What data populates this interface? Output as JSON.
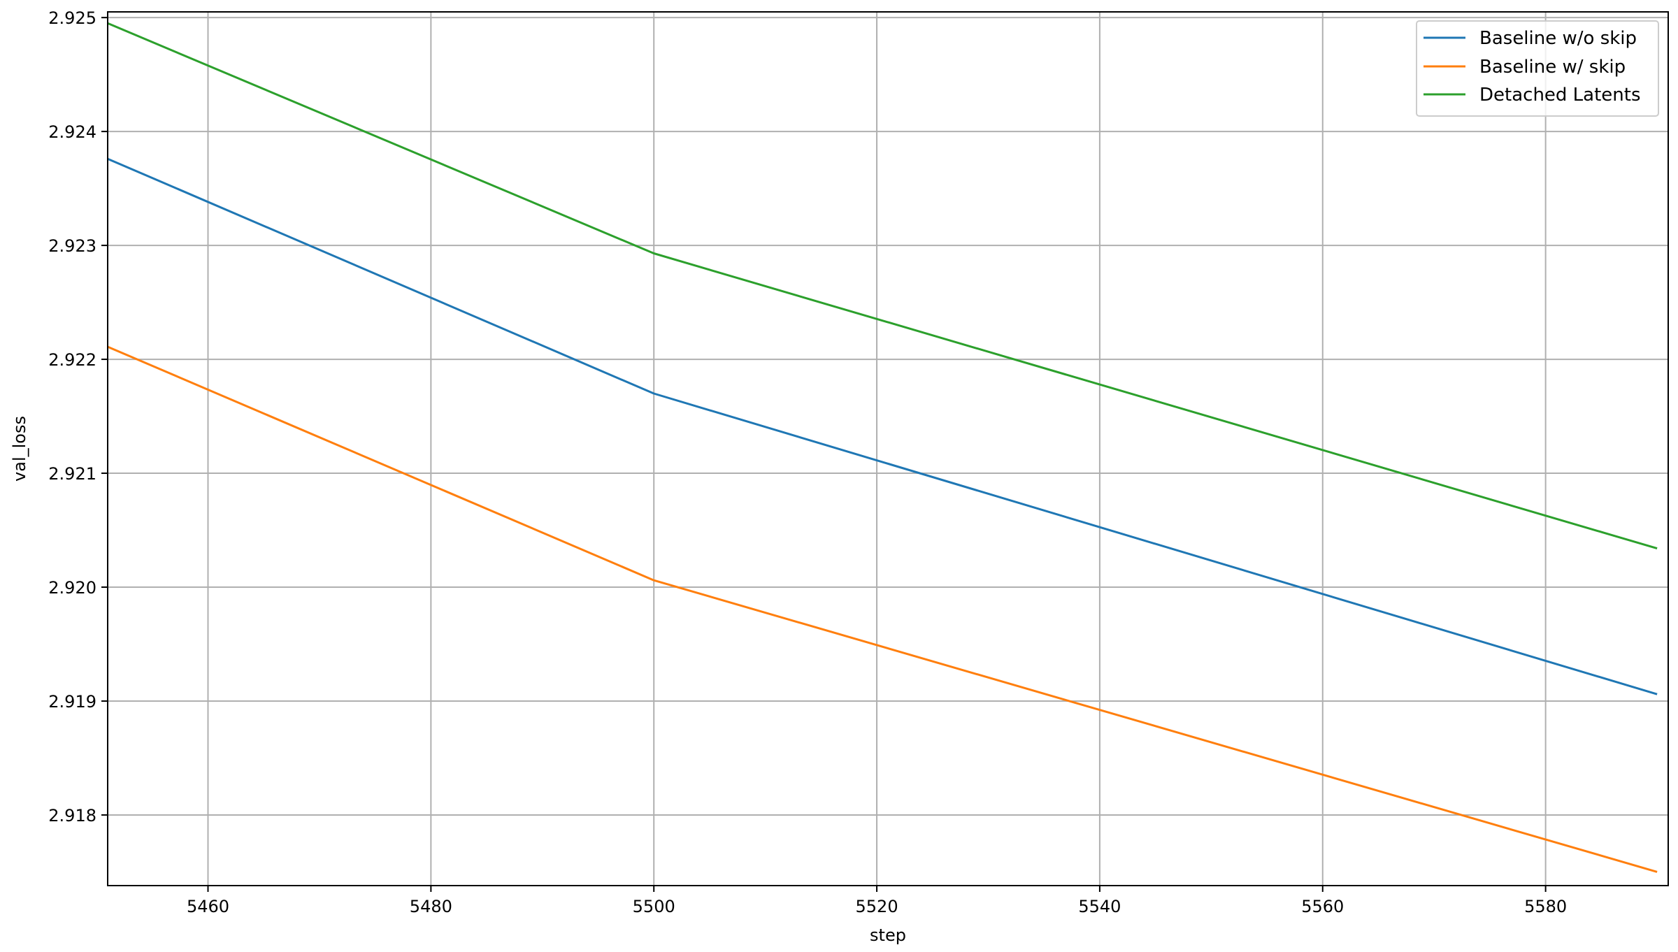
{
  "chart_data": {
    "type": "line",
    "xlabel": "step",
    "ylabel": "val_loss",
    "xlim": [
      5451,
      5591
    ],
    "ylim": [
      2.91738,
      2.92505
    ],
    "x_ticks": [
      5460,
      5480,
      5500,
      5520,
      5540,
      5560,
      5580
    ],
    "y_ticks": [
      2.918,
      2.919,
      2.92,
      2.921,
      2.922,
      2.923,
      2.924,
      2.925
    ],
    "x_tick_labels": [
      "5460",
      "5480",
      "5500",
      "5520",
      "5540",
      "5560",
      "5580"
    ],
    "y_tick_labels": [
      "2.918",
      "2.919",
      "2.920",
      "2.921",
      "2.922",
      "2.923",
      "2.924",
      "2.925"
    ],
    "grid": true,
    "legend_position": "top-right",
    "x": [
      5451,
      5500,
      5590
    ],
    "series": [
      {
        "name": "Baseline w/o skip",
        "color": "#1f77b4",
        "values": [
          2.92376,
          2.9217,
          2.91906
        ]
      },
      {
        "name": "Baseline w/ skip",
        "color": "#ff7f0e",
        "values": [
          2.92211,
          2.92006,
          2.9175
        ]
      },
      {
        "name": "Detached Latents",
        "color": "#2ca02c",
        "values": [
          2.92495,
          2.92293,
          2.92034
        ]
      }
    ]
  }
}
